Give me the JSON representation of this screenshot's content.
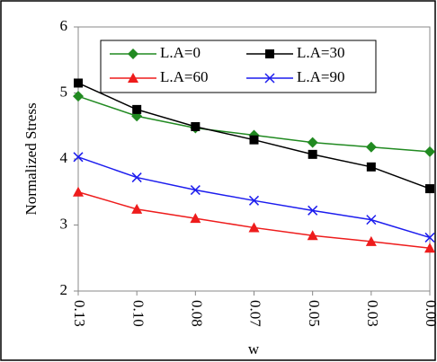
{
  "chart_data": {
    "type": "line",
    "x_label": "w",
    "y_label": "Normalized Stress",
    "categories": [
      "0.13",
      "0.10",
      "0.08",
      "0.07",
      "0.05",
      "0.03",
      "0.00"
    ],
    "series": [
      {
        "name": "L.A=0",
        "color": "#218a21",
        "marker": "diamond",
        "values": [
          4.95,
          4.65,
          4.47,
          4.36,
          4.25,
          4.18,
          4.11
        ]
      },
      {
        "name": "L.A=30",
        "color": "#000000",
        "marker": "square",
        "values": [
          5.15,
          4.75,
          4.49,
          4.29,
          4.07,
          3.88,
          3.55
        ]
      },
      {
        "name": "L.A=60",
        "color": "#ee1c1c",
        "marker": "triangle",
        "values": [
          3.5,
          3.24,
          3.1,
          2.96,
          2.84,
          2.75,
          2.65
        ]
      },
      {
        "name": "L.A=90",
        "color": "#1c1cee",
        "marker": "x",
        "values": [
          4.03,
          3.72,
          3.53,
          3.37,
          3.22,
          3.08,
          2.81
        ]
      }
    ],
    "ylim": [
      2,
      6
    ],
    "yticks": [
      2,
      3,
      4,
      5,
      6
    ],
    "grid": false
  }
}
